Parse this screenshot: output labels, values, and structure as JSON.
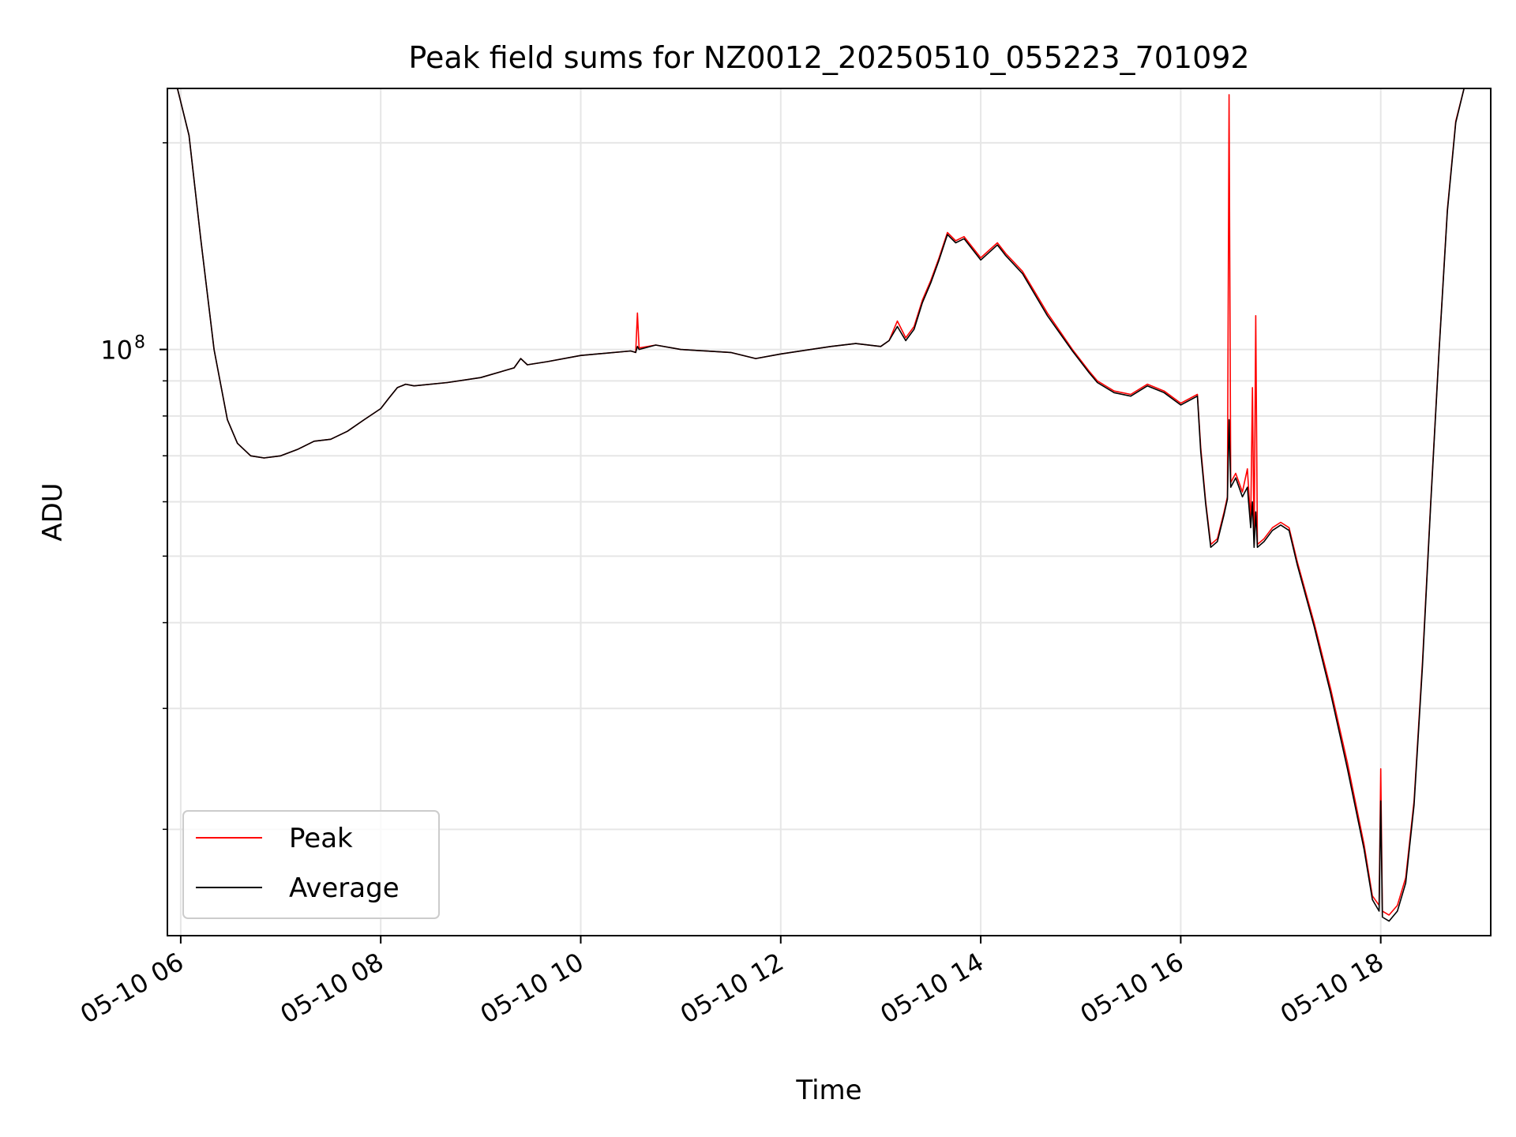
{
  "chart_data": {
    "type": "line",
    "title": "Peak field sums for NZ0012_20250510_055223_701092",
    "xlabel": "Time",
    "ylabel": "ADU",
    "yscale": "log",
    "grid": true,
    "grid_minor_y": true,
    "legend": {
      "placement": "lower-left"
    },
    "xlim": [
      "05-10 05:52",
      "05-10 19:06"
    ],
    "ylim": [
      14000000,
      240000000
    ],
    "x_ticks": [
      {
        "t": "05-10 06:00",
        "label": "05-10 06"
      },
      {
        "t": "05-10 08:00",
        "label": "05-10 08"
      },
      {
        "t": "05-10 10:00",
        "label": "05-10 10"
      },
      {
        "t": "05-10 12:00",
        "label": "05-10 12"
      },
      {
        "t": "05-10 14:00",
        "label": "05-10 14"
      },
      {
        "t": "05-10 16:00",
        "label": "05-10 16"
      },
      {
        "t": "05-10 18:00",
        "label": "05-10 18"
      }
    ],
    "y_ticks_major": [
      {
        "value": 100000000,
        "label_base": "10",
        "label_exp": "8"
      }
    ],
    "y_ticks_minor": [
      20000000,
      30000000,
      40000000,
      50000000,
      60000000,
      70000000,
      80000000,
      90000000,
      200000000
    ],
    "series": [
      {
        "name": "Peak",
        "color": "#ff0000",
        "points": [
          [
            "05-10 05:52",
            240000000
          ],
          [
            "05-10 05:58",
            240000000
          ],
          [
            "05-10 06:05",
            205000000
          ],
          [
            "05-10 06:12",
            145000000
          ],
          [
            "05-10 06:20",
            100000000
          ],
          [
            "05-10 06:28",
            79000000
          ],
          [
            "05-10 06:34",
            73000000
          ],
          [
            "05-10 06:42",
            70000000
          ],
          [
            "05-10 06:50",
            69500000
          ],
          [
            "05-10 07:00",
            70000000
          ],
          [
            "05-10 07:10",
            71500000
          ],
          [
            "05-10 07:20",
            73500000
          ],
          [
            "05-10 07:30",
            74000000
          ],
          [
            "05-10 07:40",
            76000000
          ],
          [
            "05-10 07:50",
            79000000
          ],
          [
            "05-10 08:00",
            82000000
          ],
          [
            "05-10 08:05",
            85000000
          ],
          [
            "05-10 08:10",
            88000000
          ],
          [
            "05-10 08:15",
            89000000
          ],
          [
            "05-10 08:20",
            88500000
          ],
          [
            "05-10 08:40",
            89500000
          ],
          [
            "05-10 09:00",
            91000000
          ],
          [
            "05-10 09:20",
            94000000
          ],
          [
            "05-10 09:24",
            97000000
          ],
          [
            "05-10 09:28",
            95000000
          ],
          [
            "05-10 09:40",
            96000000
          ],
          [
            "05-10 10:00",
            98000000
          ],
          [
            "05-10 10:30",
            99500000
          ],
          [
            "05-10 10:33",
            99000000
          ],
          [
            "05-10 10:34",
            113000000
          ],
          [
            "05-10 10:35",
            100500000
          ],
          [
            "05-10 10:45",
            101500000
          ],
          [
            "05-10 11:00",
            100000000
          ],
          [
            "05-10 11:30",
            99000000
          ],
          [
            "05-10 11:45",
            97000000
          ],
          [
            "05-10 12:00",
            98500000
          ],
          [
            "05-10 12:30",
            101000000
          ],
          [
            "05-10 12:45",
            102000000
          ],
          [
            "05-10 13:00",
            101000000
          ],
          [
            "05-10 13:05",
            103000000
          ],
          [
            "05-10 13:10",
            110000000
          ],
          [
            "05-10 13:15",
            104000000
          ],
          [
            "05-10 13:20",
            108000000
          ],
          [
            "05-10 13:25",
            118000000
          ],
          [
            "05-10 13:30",
            126000000
          ],
          [
            "05-10 13:35",
            136000000
          ],
          [
            "05-10 13:40",
            148000000
          ],
          [
            "05-10 13:45",
            144000000
          ],
          [
            "05-10 13:50",
            146000000
          ],
          [
            "05-10 14:00",
            136000000
          ],
          [
            "05-10 14:10",
            143000000
          ],
          [
            "05-10 14:15",
            138000000
          ],
          [
            "05-10 14:25",
            130000000
          ],
          [
            "05-10 14:40",
            113000000
          ],
          [
            "05-10 14:55",
            100000000
          ],
          [
            "05-10 15:05",
            93000000
          ],
          [
            "05-10 15:10",
            90000000
          ],
          [
            "05-10 15:20",
            87000000
          ],
          [
            "05-10 15:30",
            86000000
          ],
          [
            "05-10 15:40",
            89000000
          ],
          [
            "05-10 15:50",
            87000000
          ],
          [
            "05-10 16:00",
            83500000
          ],
          [
            "05-10 16:10",
            86000000
          ],
          [
            "05-10 16:12",
            72000000
          ],
          [
            "05-10 16:15",
            60000000
          ],
          [
            "05-10 16:18",
            52000000
          ],
          [
            "05-10 16:22",
            53000000
          ],
          [
            "05-10 16:26",
            58000000
          ],
          [
            "05-10 16:28",
            61000000
          ],
          [
            "05-10 16:29",
            235000000
          ],
          [
            "05-10 16:30",
            64000000
          ],
          [
            "05-10 16:33",
            66000000
          ],
          [
            "05-10 16:37",
            62000000
          ],
          [
            "05-10 16:40",
            67000000
          ],
          [
            "05-10 16:42",
            56000000
          ],
          [
            "05-10 16:43",
            88000000
          ],
          [
            "05-10 16:44",
            52000000
          ],
          [
            "05-10 16:45",
            112000000
          ],
          [
            "05-10 16:46",
            52000000
          ],
          [
            "05-10 16:50",
            53000000
          ],
          [
            "05-10 16:55",
            55000000
          ],
          [
            "05-10 17:00",
            56000000
          ],
          [
            "05-10 17:05",
            55000000
          ],
          [
            "05-10 17:10",
            49000000
          ],
          [
            "05-10 17:20",
            40000000
          ],
          [
            "05-10 17:30",
            32000000
          ],
          [
            "05-10 17:40",
            25000000
          ],
          [
            "05-10 17:50",
            19000000
          ],
          [
            "05-10 17:55",
            16000000
          ],
          [
            "05-10 17:59",
            15500000
          ],
          [
            "05-10 18:00",
            24500000
          ],
          [
            "05-10 18:01",
            15200000
          ],
          [
            "05-10 18:05",
            15000000
          ],
          [
            "05-10 18:10",
            15500000
          ],
          [
            "05-10 18:15",
            17000000
          ],
          [
            "05-10 18:20",
            22000000
          ],
          [
            "05-10 18:25",
            35000000
          ],
          [
            "05-10 18:30",
            60000000
          ],
          [
            "05-10 18:35",
            100000000
          ],
          [
            "05-10 18:40",
            160000000
          ],
          [
            "05-10 18:45",
            215000000
          ],
          [
            "05-10 18:50",
            240000000
          ],
          [
            "05-10 19:06",
            240000000
          ]
        ]
      },
      {
        "name": "Average",
        "color": "#000000",
        "points": [
          [
            "05-10 05:52",
            240000000
          ],
          [
            "05-10 05:58",
            240000000
          ],
          [
            "05-10 06:05",
            205000000
          ],
          [
            "05-10 06:12",
            145000000
          ],
          [
            "05-10 06:20",
            100000000
          ],
          [
            "05-10 06:28",
            79000000
          ],
          [
            "05-10 06:34",
            73000000
          ],
          [
            "05-10 06:42",
            70000000
          ],
          [
            "05-10 06:50",
            69500000
          ],
          [
            "05-10 07:00",
            70000000
          ],
          [
            "05-10 07:10",
            71500000
          ],
          [
            "05-10 07:20",
            73500000
          ],
          [
            "05-10 07:30",
            74000000
          ],
          [
            "05-10 07:40",
            76000000
          ],
          [
            "05-10 07:50",
            79000000
          ],
          [
            "05-10 08:00",
            82000000
          ],
          [
            "05-10 08:05",
            85000000
          ],
          [
            "05-10 08:10",
            88000000
          ],
          [
            "05-10 08:15",
            89000000
          ],
          [
            "05-10 08:20",
            88500000
          ],
          [
            "05-10 08:40",
            89500000
          ],
          [
            "05-10 09:00",
            91000000
          ],
          [
            "05-10 09:20",
            94000000
          ],
          [
            "05-10 09:24",
            97000000
          ],
          [
            "05-10 09:28",
            95000000
          ],
          [
            "05-10 09:40",
            96000000
          ],
          [
            "05-10 10:00",
            98000000
          ],
          [
            "05-10 10:30",
            99500000
          ],
          [
            "05-10 10:33",
            99000000
          ],
          [
            "05-10 10:34",
            101000000
          ],
          [
            "05-10 10:35",
            100000000
          ],
          [
            "05-10 10:45",
            101500000
          ],
          [
            "05-10 11:00",
            100000000
          ],
          [
            "05-10 11:30",
            99000000
          ],
          [
            "05-10 11:45",
            97000000
          ],
          [
            "05-10 12:00",
            98500000
          ],
          [
            "05-10 12:30",
            101000000
          ],
          [
            "05-10 12:45",
            102000000
          ],
          [
            "05-10 13:00",
            101000000
          ],
          [
            "05-10 13:05",
            103000000
          ],
          [
            "05-10 13:10",
            108000000
          ],
          [
            "05-10 13:15",
            103000000
          ],
          [
            "05-10 13:20",
            107000000
          ],
          [
            "05-10 13:25",
            117000000
          ],
          [
            "05-10 13:30",
            125000000
          ],
          [
            "05-10 13:35",
            135000000
          ],
          [
            "05-10 13:40",
            147000000
          ],
          [
            "05-10 13:45",
            143000000
          ],
          [
            "05-10 13:50",
            145000000
          ],
          [
            "05-10 14:00",
            135000000
          ],
          [
            "05-10 14:10",
            142000000
          ],
          [
            "05-10 14:15",
            137000000
          ],
          [
            "05-10 14:25",
            129000000
          ],
          [
            "05-10 14:40",
            112000000
          ],
          [
            "05-10 14:55",
            99500000
          ],
          [
            "05-10 15:05",
            92500000
          ],
          [
            "05-10 15:10",
            89500000
          ],
          [
            "05-10 15:20",
            86500000
          ],
          [
            "05-10 15:30",
            85500000
          ],
          [
            "05-10 15:40",
            88500000
          ],
          [
            "05-10 15:50",
            86500000
          ],
          [
            "05-10 16:00",
            83000000
          ],
          [
            "05-10 16:10",
            85500000
          ],
          [
            "05-10 16:12",
            71000000
          ],
          [
            "05-10 16:15",
            59500000
          ],
          [
            "05-10 16:18",
            51500000
          ],
          [
            "05-10 16:22",
            52500000
          ],
          [
            "05-10 16:26",
            57500000
          ],
          [
            "05-10 16:28",
            60500000
          ],
          [
            "05-10 16:29",
            79000000
          ],
          [
            "05-10 16:30",
            63000000
          ],
          [
            "05-10 16:33",
            65000000
          ],
          [
            "05-10 16:37",
            61000000
          ],
          [
            "05-10 16:40",
            63000000
          ],
          [
            "05-10 16:42",
            55000000
          ],
          [
            "05-10 16:43",
            60000000
          ],
          [
            "05-10 16:44",
            51500000
          ],
          [
            "05-10 16:45",
            58000000
          ],
          [
            "05-10 16:46",
            51500000
          ],
          [
            "05-10 16:50",
            52500000
          ],
          [
            "05-10 16:55",
            54500000
          ],
          [
            "05-10 17:00",
            55500000
          ],
          [
            "05-10 17:05",
            54500000
          ],
          [
            "05-10 17:10",
            48500000
          ],
          [
            "05-10 17:20",
            39500000
          ],
          [
            "05-10 17:30",
            31500000
          ],
          [
            "05-10 17:40",
            24500000
          ],
          [
            "05-10 17:50",
            18700000
          ],
          [
            "05-10 17:55",
            15800000
          ],
          [
            "05-10 17:59",
            15200000
          ],
          [
            "05-10 18:00",
            22000000
          ],
          [
            "05-10 18:01",
            14900000
          ],
          [
            "05-10 18:05",
            14700000
          ],
          [
            "05-10 18:10",
            15200000
          ],
          [
            "05-10 18:15",
            16700000
          ],
          [
            "05-10 18:20",
            21700000
          ],
          [
            "05-10 18:25",
            34500000
          ],
          [
            "05-10 18:30",
            59500000
          ],
          [
            "05-10 18:35",
            99500000
          ],
          [
            "05-10 18:40",
            159000000
          ],
          [
            "05-10 18:45",
            214000000
          ],
          [
            "05-10 18:50",
            240000000
          ],
          [
            "05-10 19:06",
            240000000
          ]
        ]
      }
    ]
  }
}
